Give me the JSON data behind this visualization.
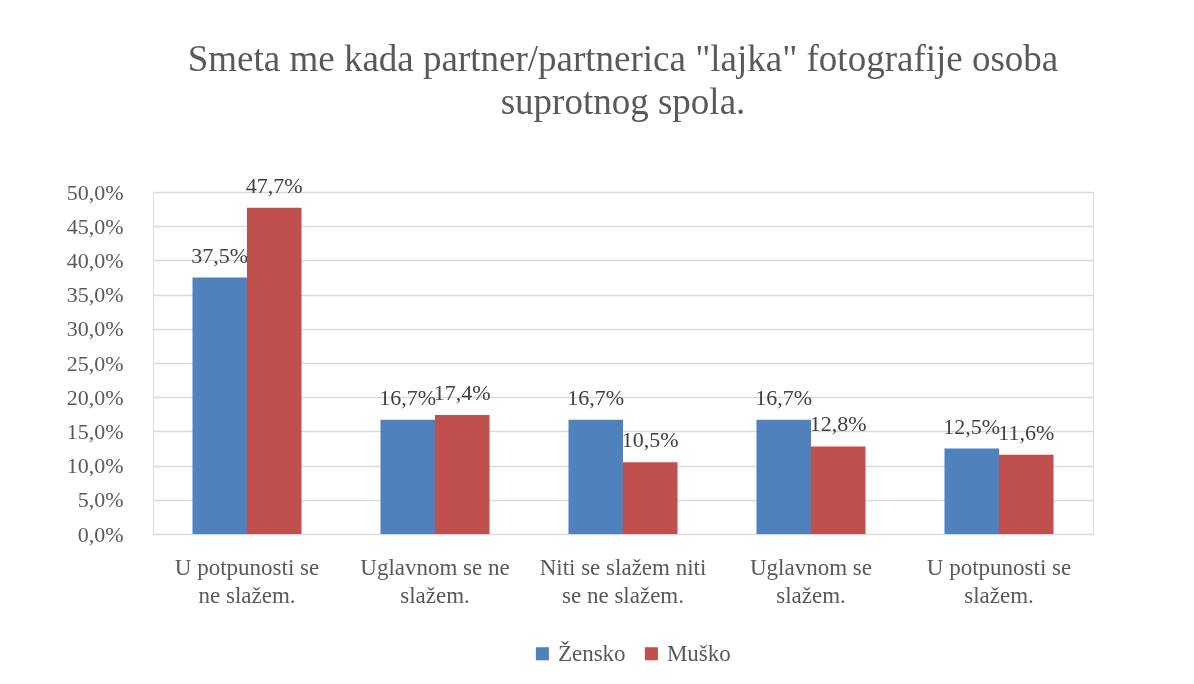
{
  "chart_data": {
    "type": "bar",
    "title": "Smeta me kada partner/partnerica \"lajka\" fotografije osoba suprotnog spola.",
    "categories": [
      "U potpunosti se ne slažem.",
      "Uglavnom se ne slažem.",
      "Niti se slažem niti se ne slažem.",
      "Uglavnom se slažem.",
      "U potpunosti se slažem."
    ],
    "series": [
      {
        "name": "Žensko",
        "color": "#4f81bd",
        "values": [
          37.5,
          16.7,
          16.7,
          16.7,
          12.5
        ],
        "value_labels": [
          "37,5%",
          "16,7%",
          "16,7%",
          "16,7%",
          "12,5%"
        ]
      },
      {
        "name": "Muško",
        "color": "#c0504d",
        "values": [
          47.7,
          17.4,
          10.5,
          12.8,
          11.6
        ],
        "value_labels": [
          "47,7%",
          "17,4%",
          "10,5%",
          "12,8%",
          "11,6%"
        ]
      }
    ],
    "ylim": [
      0,
      50
    ],
    "yticks": [
      {
        "value": 0,
        "label": "0,0%"
      },
      {
        "value": 5,
        "label": "5,0%"
      },
      {
        "value": 10,
        "label": "10,0%"
      },
      {
        "value": 15,
        "label": "15,0%"
      },
      {
        "value": 20,
        "label": "20,0%"
      },
      {
        "value": 25,
        "label": "25,0%"
      },
      {
        "value": 30,
        "label": "30,0%"
      },
      {
        "value": 35,
        "label": "35,0%"
      },
      {
        "value": 40,
        "label": "40,0%"
      },
      {
        "value": 45,
        "label": "45,0%"
      },
      {
        "value": 50,
        "label": "50,0%"
      }
    ],
    "grid": "y",
    "legend": "bottom"
  }
}
